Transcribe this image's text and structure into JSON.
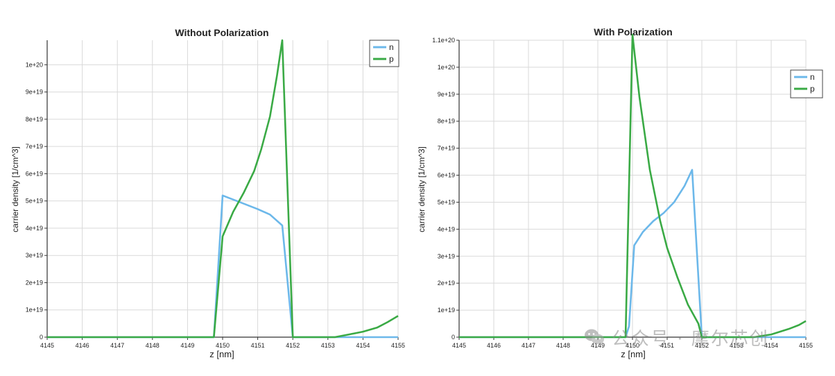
{
  "colors": {
    "n": "#6cb8ea",
    "p": "#3aaa45",
    "grid": "#d9d9d9",
    "axis": "#333333"
  },
  "watermark": {
    "text": "公众号 · 摩尔芯创",
    "icon": "wechat-icon"
  },
  "chart_data": [
    {
      "type": "line",
      "title": "Without Polarization",
      "xlabel": "z [nm]",
      "ylabel": "carrier density [1/cm^3]",
      "xlim": [
        4145,
        4155
      ],
      "ylim": [
        0,
        1.09e+20
      ],
      "xticks": [
        "4145",
        "4146",
        "4147",
        "4148",
        "4149",
        "4150",
        "4151",
        "4152",
        "4153",
        "4154",
        "4155"
      ],
      "yticks": [
        0,
        1e+19,
        2e+19,
        3e+19,
        4e+19,
        5e+19,
        6e+19,
        7e+19,
        8e+19,
        9e+19,
        1e+20
      ],
      "ytick_labels": [
        "0",
        "1e+19",
        "2e+19",
        "3e+19",
        "4e+19",
        "5e+19",
        "6e+19",
        "7e+19",
        "8e+19",
        "9e+19",
        "1e+20"
      ],
      "grid": true,
      "legend_position": "top-right",
      "series": [
        {
          "name": "n",
          "color_key": "n",
          "x": [
            4145,
            4149.75,
            4150.0,
            4150.5,
            4151.0,
            4151.35,
            4151.7,
            4152.0,
            4155
          ],
          "y": [
            0,
            0,
            5.2e+19,
            4.95e+19,
            4.7e+19,
            4.5e+19,
            4.1e+19,
            0,
            0
          ]
        },
        {
          "name": "p",
          "color_key": "p",
          "x": [
            4145,
            4149.75,
            4150.0,
            4150.3,
            4150.6,
            4150.9,
            4151.1,
            4151.35,
            4151.55,
            4151.7,
            4152.0,
            4153.2,
            4153.6,
            4154.0,
            4154.4,
            4154.7,
            4155.0
          ],
          "y": [
            0,
            0,
            3.7e+19,
            4.6e+19,
            5.3e+19,
            6.1e+19,
            6.9e+19,
            8.1e+19,
            9.6e+19,
            1.09e+20,
            0,
            0,
            1e+18,
            2e+18,
            3.5e+18,
            5.5e+18,
            7.8e+18
          ]
        }
      ]
    },
    {
      "type": "line",
      "title": "With Polarization",
      "xlabel": "z [nm]",
      "ylabel": "carrier density [1/cm^3]",
      "xlim": [
        4145,
        4155
      ],
      "ylim": [
        0,
        1.1e+20
      ],
      "xticks": [
        "4145",
        "4146",
        "4147",
        "4148",
        "4149",
        "4150",
        "4151",
        "4152",
        "4153",
        "4154",
        "4155"
      ],
      "yticks": [
        0,
        1e+19,
        2e+19,
        3e+19,
        4e+19,
        5e+19,
        6e+19,
        7e+19,
        8e+19,
        9e+19,
        1e+20,
        1.1e+20
      ],
      "ytick_labels": [
        "0",
        "1e+19",
        "2e+19",
        "3e+19",
        "4e+19",
        "5e+19",
        "6e+19",
        "7e+19",
        "8e+19",
        "9e+19",
        "1e+20",
        "1.1e+20"
      ],
      "grid": true,
      "legend_position": "right",
      "series": [
        {
          "name": "n",
          "color_key": "n",
          "x": [
            4145,
            4149.8,
            4149.9,
            4150.05,
            4150.3,
            4150.6,
            4150.9,
            4151.2,
            4151.5,
            4151.72,
            4152.0,
            4155
          ],
          "y": [
            0,
            0,
            4e+18,
            3.4e+19,
            3.9e+19,
            4.3e+19,
            4.6e+19,
            5e+19,
            5.6e+19,
            6.2e+19,
            0,
            0
          ]
        },
        {
          "name": "p",
          "color_key": "p",
          "x": [
            4145,
            4149.8,
            4150.0,
            4150.2,
            4150.5,
            4150.8,
            4151.0,
            4151.3,
            4151.6,
            4151.9,
            4152.0,
            4153.5,
            4154.0,
            4154.5,
            4154.8,
            4155.0
          ],
          "y": [
            0,
            0,
            1.12e+20,
            8.9e+19,
            6.2e+19,
            4.3e+19,
            3.3e+19,
            2.2e+19,
            1.2e+19,
            5e+18,
            0,
            0,
            1e+18,
            3e+18,
            4.5e+18,
            6e+18
          ]
        }
      ]
    }
  ]
}
